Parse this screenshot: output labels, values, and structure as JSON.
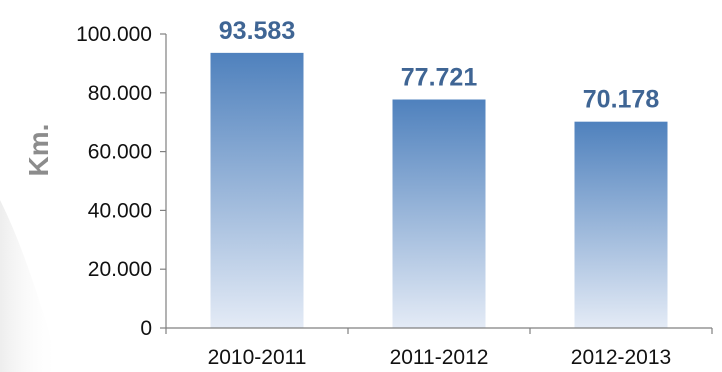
{
  "chart_data": {
    "type": "bar",
    "categories": [
      "2010-2011",
      "2011-2012",
      "2012-2013"
    ],
    "values": [
      93583,
      77721,
      70178
    ],
    "data_labels": [
      "93.583",
      "77.721",
      "70.178"
    ],
    "ylabel": "Km.",
    "xlabel": "",
    "title": "",
    "ylim": [
      0,
      100000
    ],
    "y_ticks": [
      0,
      20000,
      40000,
      60000,
      80000,
      100000
    ],
    "y_tick_labels": [
      "0",
      "20.000",
      "40.000",
      "60.000",
      "80.000",
      "100.000"
    ],
    "grid": false,
    "legend": "none",
    "colors": {
      "bar_top": "#4f81bd",
      "bar_bottom": "#e4ebf6",
      "label": "#3f6594",
      "axis": "#808080"
    }
  }
}
